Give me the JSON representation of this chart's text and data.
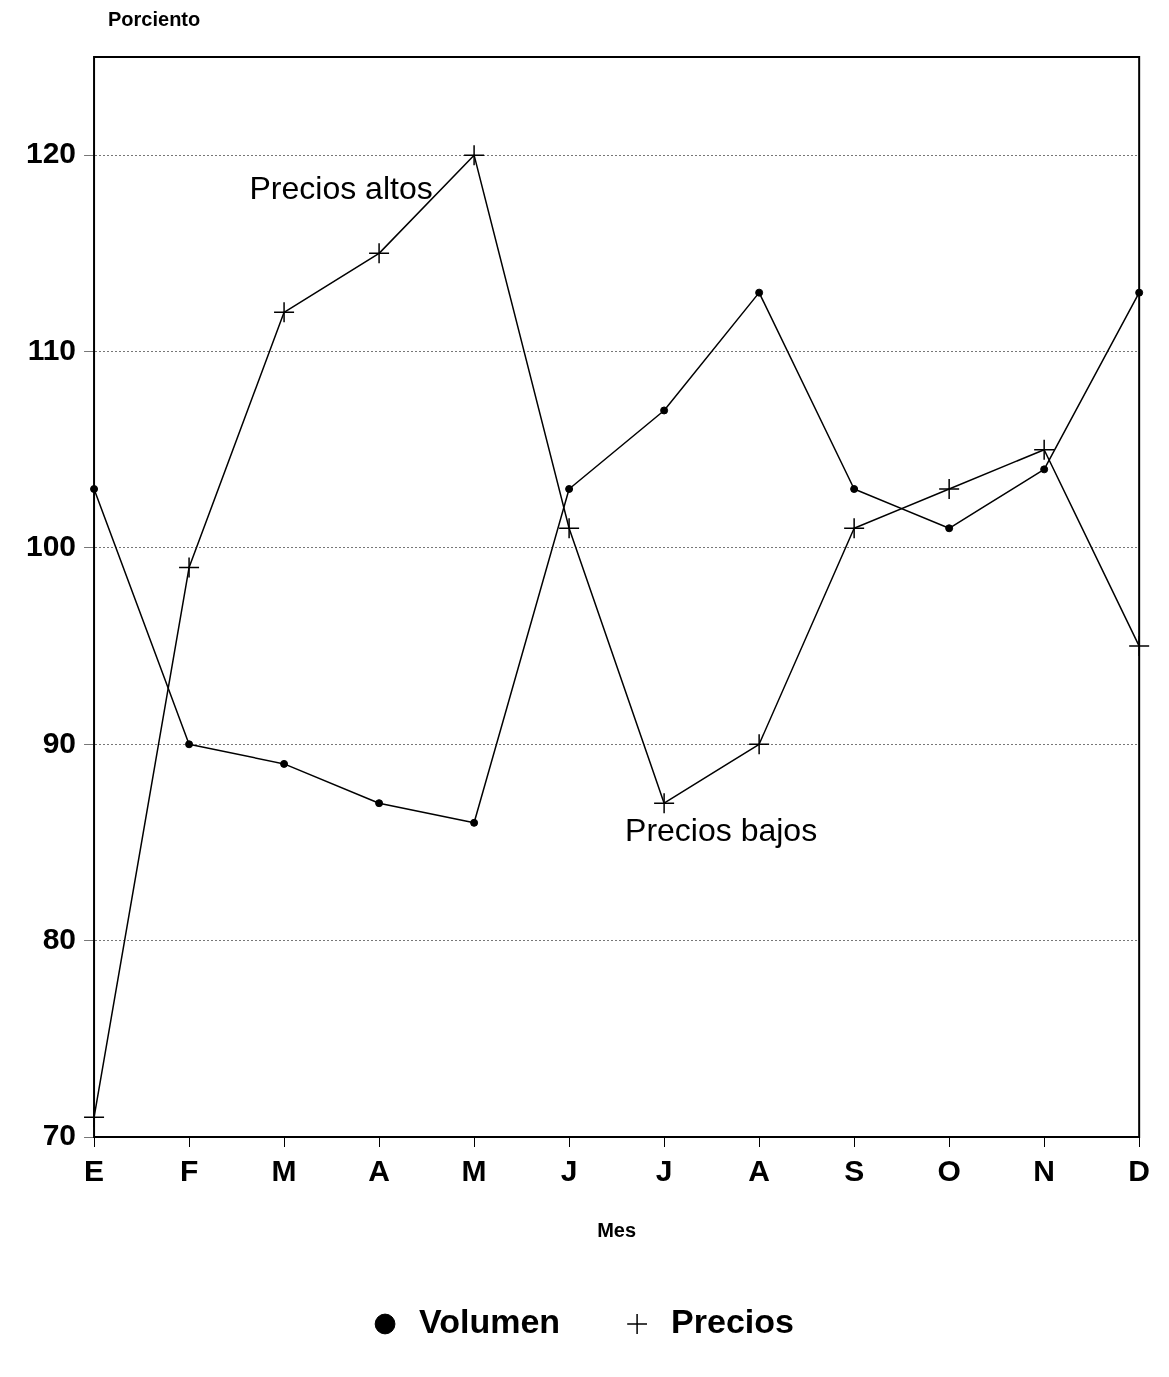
{
  "chart_data": {
    "type": "line",
    "ylabel": "Porciento",
    "xlabel": "Mes",
    "categories": [
      "E",
      "F",
      "M",
      "A",
      "M",
      "J",
      "J",
      "A",
      "S",
      "O",
      "N",
      "D"
    ],
    "series": [
      {
        "name": "Volumen",
        "color": "#000000",
        "marker": "circle",
        "values": [
          103,
          90,
          89,
          87,
          86,
          103,
          107,
          113,
          103,
          101,
          104,
          113
        ]
      },
      {
        "name": "Precios",
        "color": "#000000",
        "marker": "cross",
        "values": [
          71,
          99,
          112,
          115,
          120,
          101,
          87,
          90,
          101,
          103,
          105,
          95
        ]
      }
    ],
    "ylim": [
      70,
      125
    ],
    "yticks": [
      70,
      80,
      90,
      100,
      110,
      120
    ],
    "grid": "y",
    "legend": "bottom",
    "line_style": "solid",
    "annotations": [
      "Precios altos",
      "Precios bajos"
    ]
  }
}
